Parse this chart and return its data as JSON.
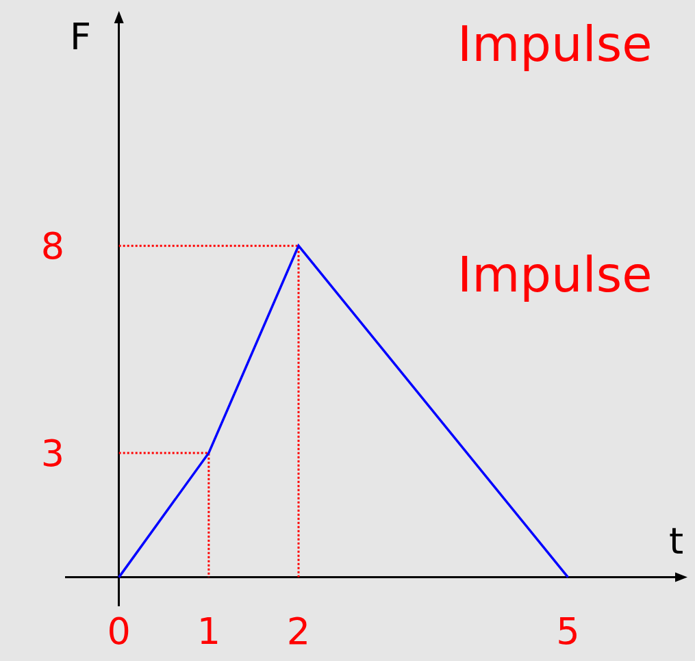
{
  "chart_data": {
    "type": "line",
    "xlabel": "t",
    "ylabel": "F",
    "annotations": [
      "Impulse",
      "Impulse"
    ],
    "xlim": [
      -0.6,
      6.3
    ],
    "ylim": [
      -0.7,
      13.6
    ],
    "xticks": [
      0,
      1,
      2,
      5
    ],
    "yticks": [
      3,
      8
    ],
    "grid": false,
    "marker": "none",
    "series": [
      {
        "color": "#0000ff",
        "x": [
          0,
          1,
          2,
          5
        ],
        "values": [
          0,
          3,
          8,
          0
        ],
        "line_style": "solid"
      },
      {
        "color": "#ff0000",
        "x": [
          0,
          1,
          1
        ],
        "values": [
          3,
          3,
          0
        ],
        "line_style": "dotted"
      },
      {
        "color": "#ff0000",
        "x": [
          0,
          2,
          2
        ],
        "values": [
          8,
          8,
          0
        ],
        "line_style": "dotted"
      }
    ]
  }
}
